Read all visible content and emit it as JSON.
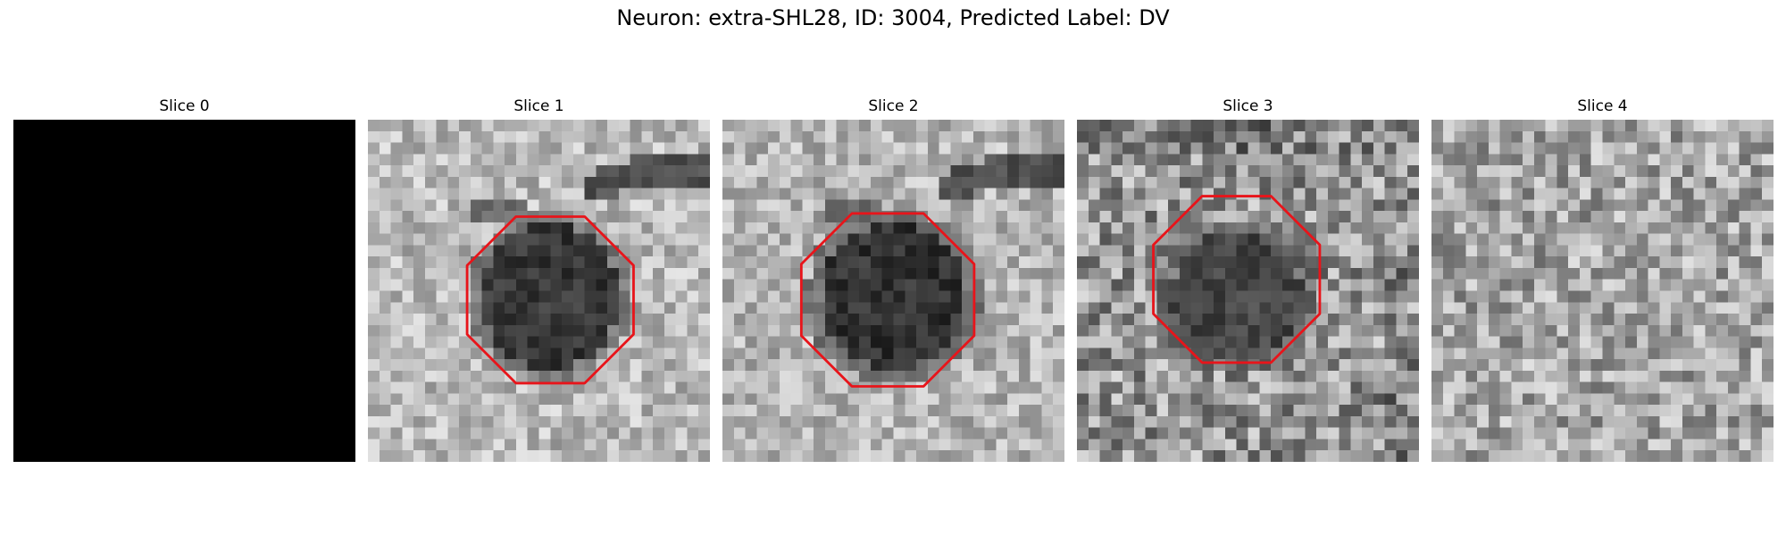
{
  "figure": {
    "title": "Neuron: extra-SHL28, ID: 3004, Predicted Label: DV"
  },
  "colors": {
    "roi_outline": "#e8141a",
    "background": "#ffffff"
  },
  "panels": [
    {
      "title": "Slice 0",
      "has_roi": false,
      "uniform_black": true
    },
    {
      "title": "Slice 1",
      "has_roi": true,
      "uniform_black": false
    },
    {
      "title": "Slice 2",
      "has_roi": true,
      "uniform_black": false
    },
    {
      "title": "Slice 3",
      "has_roi": true,
      "uniform_black": false
    },
    {
      "title": "Slice 4",
      "has_roi": false,
      "uniform_black": false
    }
  ]
}
